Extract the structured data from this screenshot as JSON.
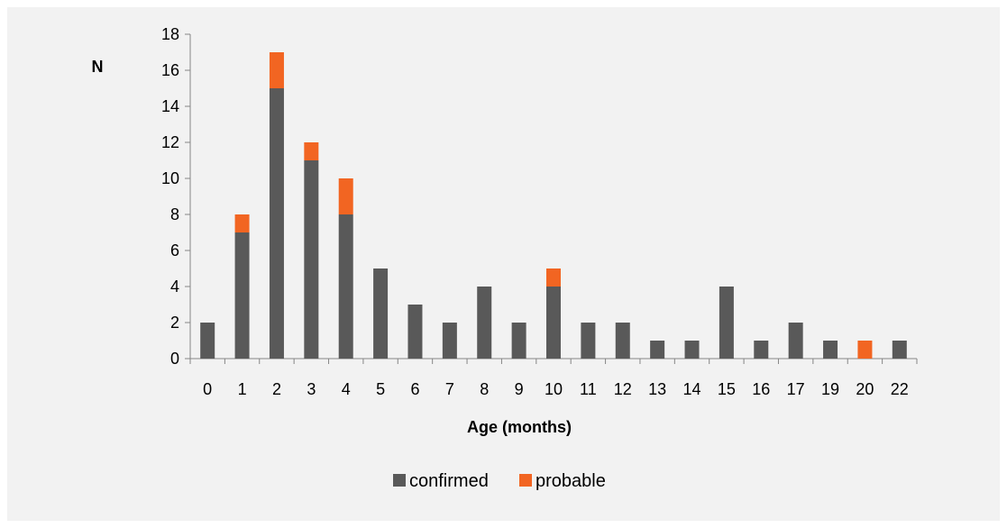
{
  "chart_data": {
    "type": "bar",
    "stacked": true,
    "title": "",
    "xlabel": "Age (months)",
    "ylabel": "N",
    "ylim": [
      0,
      18
    ],
    "yticks": [
      0,
      2,
      4,
      6,
      8,
      10,
      12,
      14,
      16,
      18
    ],
    "categories": [
      "0",
      "1",
      "2",
      "3",
      "4",
      "5",
      "6",
      "7",
      "8",
      "9",
      "10",
      "11",
      "12",
      "13",
      "14",
      "15",
      "16",
      "17",
      "19",
      "20",
      "22"
    ],
    "series": [
      {
        "name": "confirmed",
        "color": "#595959",
        "values": [
          2,
          7,
          15,
          11,
          8,
          5,
          3,
          2,
          4,
          2,
          4,
          2,
          2,
          1,
          1,
          4,
          1,
          2,
          1,
          0,
          1
        ]
      },
      {
        "name": "probable",
        "color": "#f26522",
        "values": [
          0,
          1,
          2,
          1,
          2,
          0,
          0,
          0,
          0,
          0,
          1,
          0,
          0,
          0,
          0,
          0,
          0,
          0,
          0,
          1,
          0
        ]
      }
    ],
    "grid": false,
    "legend_position": "bottom"
  }
}
